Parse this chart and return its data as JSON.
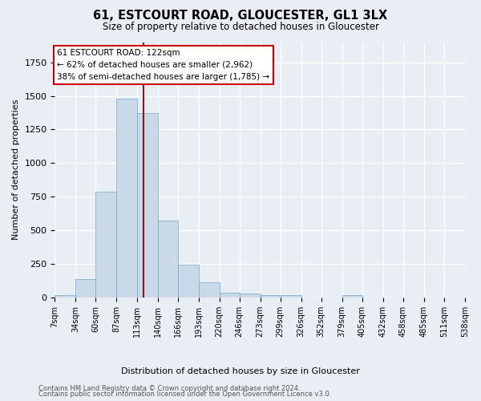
{
  "title": "61, ESTCOURT ROAD, GLOUCESTER, GL1 3LX",
  "subtitle": "Size of property relative to detached houses in Gloucester",
  "xlabel": "Distribution of detached houses by size in Gloucester",
  "ylabel": "Number of detached properties",
  "annotation_line1": "61 ESTCOURT ROAD: 122sqm",
  "annotation_line2": "← 62% of detached houses are smaller (2,962)",
  "annotation_line3": "38% of semi-detached houses are larger (1,785) →",
  "property_size": 122,
  "footnote1": "Contains HM Land Registry data © Crown copyright and database right 2024.",
  "footnote2": "Contains public sector information licensed under the Open Government Licence v3.0.",
  "bar_edges": [
    7,
    34,
    60,
    87,
    113,
    140,
    166,
    193,
    220,
    246,
    273,
    299,
    326,
    352,
    379,
    405,
    432,
    458,
    485,
    511,
    538
  ],
  "bar_heights": [
    20,
    135,
    790,
    1480,
    1370,
    575,
    245,
    115,
    35,
    30,
    20,
    20,
    0,
    0,
    20,
    0,
    0,
    0,
    0,
    0
  ],
  "bar_color": "#c9d9e8",
  "bar_edge_color": "#6fa8c8",
  "vline_x": 122,
  "vline_color": "#8b1a1a",
  "annotation_box_color": "#ffffff",
  "annotation_box_edge": "#cc0000",
  "bg_color": "#e8eef4",
  "grid_color": "#ffffff",
  "ylim": [
    0,
    1900
  ],
  "tick_labels": [
    "7sqm",
    "34sqm",
    "60sqm",
    "87sqm",
    "113sqm",
    "140sqm",
    "166sqm",
    "193sqm",
    "220sqm",
    "246sqm",
    "273sqm",
    "299sqm",
    "326sqm",
    "352sqm",
    "379sqm",
    "405sqm",
    "432sqm",
    "458sqm",
    "485sqm",
    "511sqm",
    "538sqm"
  ]
}
